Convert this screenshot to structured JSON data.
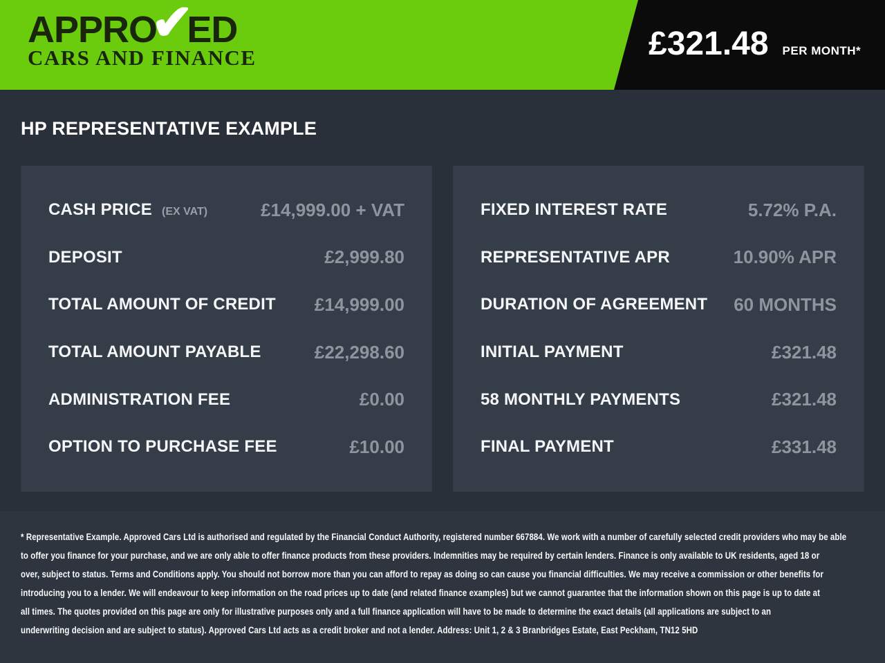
{
  "colors": {
    "brand_green": "#6bcc0e",
    "wedge_black": "#0b0b0b",
    "page_background": "#29303a",
    "panel_background": "#353d48",
    "value_gray": "#8e959f"
  },
  "header": {
    "logo": {
      "word_pre_check": "APPRO",
      "check_glyph": "✔",
      "word_post_check": "ED",
      "tagline": "CARS AND FINANCE"
    },
    "price": {
      "amount": "£321.48",
      "per_label": "PER MONTH*"
    }
  },
  "main": {
    "heading": "HP REPRESENTATIVE EXAMPLE",
    "left_panel": {
      "rows": [
        {
          "label": "CASH PRICE",
          "sublabel": "(EX VAT)",
          "value": "£14,999.00 + VAT"
        },
        {
          "label": "DEPOSIT",
          "value": "£2,999.80"
        },
        {
          "label": "TOTAL AMOUNT OF CREDIT",
          "value": "£14,999.00"
        },
        {
          "label": "TOTAL AMOUNT PAYABLE",
          "value": "£22,298.60"
        },
        {
          "label": "ADMINISTRATION FEE",
          "value": "£0.00"
        },
        {
          "label": "OPTION TO PURCHASE FEE",
          "value": "£10.00"
        }
      ]
    },
    "right_panel": {
      "rows": [
        {
          "label": "FIXED INTEREST RATE",
          "value": "5.72% P.A."
        },
        {
          "label": "REPRESENTATIVE APR",
          "value": "10.90% APR"
        },
        {
          "label": "DURATION OF AGREEMENT",
          "value": "60 MONTHS"
        },
        {
          "label": "INITIAL PAYMENT",
          "value": "£321.48"
        },
        {
          "label": "58 MONTHLY PAYMENTS",
          "value": "£321.48"
        },
        {
          "label": "FINAL PAYMENT",
          "value": "£331.48"
        }
      ]
    }
  },
  "footer": {
    "lines": [
      "* Representative Example. Approved Cars Ltd is authorised and regulated by the Financial Conduct Authority, registered number 667884. We work with a number of carefully selected credit providers who may be able",
      "to offer you finance for your purchase, and we are only able to offer finance products from these providers. Indemnities may be required by certain lenders. Finance is only available to UK residents, aged 18 or",
      "over, subject to status. Terms and Conditions apply. You should not borrow more than you can afford to repay as doing so can cause you financial difficulties. We may receive a commission or other benefits for",
      "introducing you to a lender. We will endeavour to keep information on the road prices up to date (and related finance examples) but we cannot guarantee that the information shown on this page is up to date at",
      "all times. The quotes provided on this page are only for illustrative purposes only and a full finance application will have to be made to determine the exact details (all applications are subject to an",
      "underwriting decision and are subject to status). Approved Cars Ltd acts as a credit broker and not a lender. Address: Unit 1, 2 & 3 Branbridges Estate, East Peckham, TN12 5HD"
    ]
  }
}
